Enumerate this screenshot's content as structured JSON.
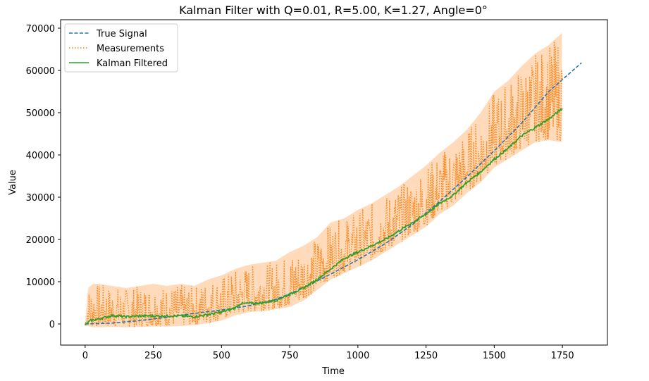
{
  "chart_data": {
    "type": "line",
    "title": "Kalman Filter with Q=0.01, R=5.00, K=1.27, Angle=0°",
    "xlabel": "Time",
    "ylabel": "Value",
    "xlim": [
      -90,
      1915
    ],
    "ylim": [
      -5000,
      72000
    ],
    "xticks": [
      0,
      250,
      500,
      750,
      1000,
      1250,
      1500,
      1750
    ],
    "yticks": [
      0,
      10000,
      20000,
      30000,
      40000,
      50000,
      60000,
      70000
    ],
    "grid": false,
    "legend_position": "top-left",
    "series": [
      {
        "name": "True Signal",
        "style": "dashed",
        "color": "#1f77b4",
        "x": [
          0,
          100,
          200,
          300,
          400,
          500,
          600,
          700,
          800,
          900,
          1000,
          1100,
          1200,
          1300,
          1400,
          1500,
          1600,
          1700,
          1820
        ],
        "y": [
          0,
          200,
          800,
          1600,
          2500,
          3300,
          4300,
          5800,
          8500,
          11800,
          15200,
          19000,
          23500,
          29000,
          34800,
          41000,
          47500,
          55000,
          61800
        ]
      },
      {
        "name": "Measurements",
        "style": "dotted",
        "color": "#ff7f0e",
        "x": [
          0,
          10,
          30,
          50,
          100,
          150,
          200,
          250,
          300,
          350,
          400,
          450,
          500,
          550,
          600,
          650,
          700,
          750,
          800,
          850,
          900,
          950,
          1000,
          1050,
          1100,
          1150,
          1200,
          1250,
          1300,
          1350,
          1400,
          1450,
          1500,
          1550,
          1600,
          1650,
          1700,
          1750
        ],
        "y": [
          0,
          3000,
          4500,
          4000,
          4500,
          3800,
          4200,
          4000,
          4500,
          4200,
          4000,
          5000,
          6000,
          7000,
          8000,
          8500,
          9000,
          10500,
          12000,
          14000,
          16500,
          17500,
          19000,
          20500,
          22000,
          24000,
          26000,
          28500,
          31000,
          33500,
          36000,
          39500,
          43000,
          46000,
          49500,
          53000,
          56000,
          58000
        ],
        "upper": [
          0,
          8500,
          9500,
          9500,
          9000,
          8500,
          9000,
          9500,
          9000,
          9500,
          9000,
          10500,
          11500,
          13000,
          14000,
          14500,
          15000,
          17000,
          18500,
          20500,
          24000,
          25000,
          27000,
          28500,
          30500,
          32500,
          35000,
          37500,
          40500,
          43000,
          46000,
          50000,
          55000,
          57500,
          61000,
          64000,
          66000,
          69000
        ],
        "lower": [
          -500,
          -500,
          -800,
          -800,
          -700,
          -800,
          -700,
          -600,
          -600,
          -500,
          -300,
          200,
          800,
          2000,
          2800,
          3000,
          3500,
          4000,
          5500,
          8000,
          10500,
          12000,
          13500,
          15000,
          17000,
          19000,
          21000,
          23000,
          26000,
          28000,
          31000,
          33500,
          37000,
          39000,
          41000,
          43000,
          43500,
          43000
        ]
      },
      {
        "name": "Kalman Filtered",
        "style": "solid",
        "color": "#2ca02c",
        "x": [
          0,
          20,
          50,
          100,
          150,
          200,
          250,
          300,
          350,
          400,
          450,
          500,
          550,
          570,
          600,
          650,
          700,
          750,
          800,
          850,
          900,
          950,
          1000,
          1050,
          1100,
          1150,
          1200,
          1250,
          1300,
          1350,
          1400,
          1450,
          1500,
          1550,
          1600,
          1650,
          1700,
          1750
        ],
        "y": [
          -200,
          800,
          1200,
          2000,
          1700,
          1900,
          1900,
          1900,
          1900,
          1700,
          2200,
          2800,
          3800,
          4800,
          4900,
          5000,
          5600,
          7000,
          8500,
          10500,
          13000,
          15500,
          17000,
          18500,
          20000,
          22000,
          24000,
          26000,
          28500,
          30500,
          33500,
          36000,
          39000,
          41500,
          44500,
          46500,
          48500,
          51000
        ]
      }
    ]
  }
}
